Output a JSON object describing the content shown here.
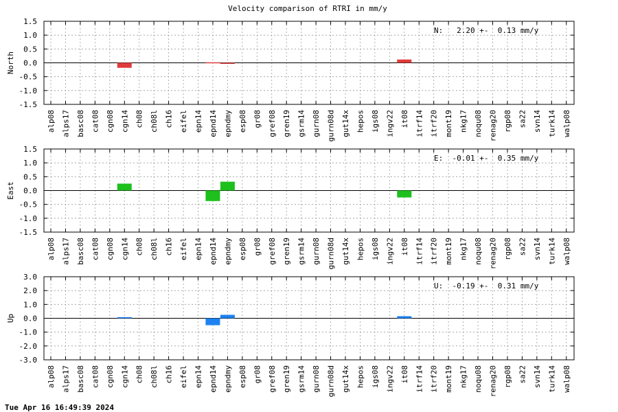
{
  "title": "Velocity comparison of RTRI in mm/y",
  "timestamp": "Tue Apr 16 16:49:39 2024",
  "categories": [
    "alp08",
    "alps17",
    "basc08",
    "cat08",
    "cgn08",
    "cgn14",
    "ch08",
    "ch08l",
    "ch16",
    "eifel",
    "epn14",
    "epnd14",
    "epndmy",
    "esp08",
    "gr08",
    "gref08",
    "gren19",
    "gsrm14",
    "gurn08",
    "gurn08d",
    "gut14x",
    "hepos",
    "igs08",
    "ingv22",
    "it08",
    "itrf14",
    "itrf20",
    "mont19",
    "nkg17",
    "noqu08",
    "renag20",
    "rgp08",
    "sa22",
    "svn14",
    "turk14",
    "walp08"
  ],
  "chart_data": [
    {
      "type": "bar",
      "ylabel": "North",
      "ylim": [
        -1.5,
        1.5
      ],
      "yticks": [
        "1.5",
        "1.0",
        "0.5",
        "0.0",
        "-0.5",
        "-1.0",
        "-1.5"
      ],
      "grid": true,
      "color": "#e03b3b",
      "annotation": "N:   2.20 +-  0.13 mm/y",
      "values": [
        0,
        0,
        0,
        0,
        0,
        -0.18,
        0,
        0,
        0,
        0,
        0,
        0.02,
        -0.02,
        0,
        0,
        0,
        0,
        0,
        0,
        0,
        0,
        0,
        0,
        0,
        0.12,
        0,
        0,
        0,
        0,
        0,
        0,
        0,
        0,
        0,
        0,
        0
      ]
    },
    {
      "type": "bar",
      "ylabel": "East",
      "ylim": [
        -1.5,
        1.5
      ],
      "yticks": [
        "1.5",
        "1.0",
        "0.5",
        "0.0",
        "-0.5",
        "-1.0",
        "-1.5"
      ],
      "grid": true,
      "color": "#1ec01e",
      "annotation": "E:  -0.01 +-  0.35 mm/y",
      "values": [
        0,
        0,
        0,
        0,
        0,
        0.25,
        0,
        0,
        0,
        0,
        0,
        -0.38,
        0.32,
        0,
        0,
        0,
        0,
        0,
        0,
        0,
        0,
        0,
        0,
        0,
        -0.25,
        0,
        0,
        0,
        0,
        0,
        0,
        0,
        0,
        0,
        0,
        0
      ]
    },
    {
      "type": "bar",
      "ylabel": "Up",
      "ylim": [
        -3.0,
        3.0
      ],
      "yticks": [
        "3.0",
        "2.0",
        "1.0",
        "0.0",
        "-1.0",
        "-2.0",
        "-3.0"
      ],
      "grid": true,
      "color": "#1e82f0",
      "annotation": "U:  -0.19 +-  0.31 mm/y",
      "values": [
        0,
        0,
        0,
        0,
        0,
        0.08,
        0,
        0,
        0,
        0,
        0,
        -0.5,
        0.25,
        0,
        0,
        0,
        0,
        0,
        0,
        0,
        0,
        0,
        0,
        0,
        0.15,
        0,
        0,
        0,
        0,
        0,
        0,
        0,
        0,
        0,
        0,
        0
      ]
    }
  ]
}
